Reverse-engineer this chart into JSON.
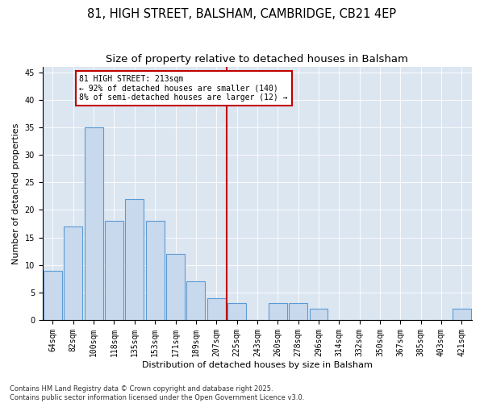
{
  "title1": "81, HIGH STREET, BALSHAM, CAMBRIDGE, CB21 4EP",
  "title2": "Size of property relative to detached houses in Balsham",
  "xlabel": "Distribution of detached houses by size in Balsham",
  "ylabel": "Number of detached properties",
  "categories": [
    "64sqm",
    "82sqm",
    "100sqm",
    "118sqm",
    "135sqm",
    "153sqm",
    "171sqm",
    "189sqm",
    "207sqm",
    "225sqm",
    "243sqm",
    "260sqm",
    "278sqm",
    "296sqm",
    "314sqm",
    "332sqm",
    "350sqm",
    "367sqm",
    "385sqm",
    "403sqm",
    "421sqm"
  ],
  "values": [
    9,
    17,
    35,
    18,
    22,
    18,
    12,
    7,
    4,
    3,
    0,
    3,
    3,
    2,
    0,
    0,
    0,
    0,
    0,
    0,
    2
  ],
  "bar_color": "#c8d9ed",
  "bar_edge_color": "#5b9bd5",
  "vline_index": 8,
  "vline_color": "#c00000",
  "annotation_text": "81 HIGH STREET: 213sqm\n← 92% of detached houses are smaller (140)\n8% of semi-detached houses are larger (12) →",
  "annotation_box_edgecolor": "#c00000",
  "ylim": [
    0,
    46
  ],
  "yticks": [
    0,
    5,
    10,
    15,
    20,
    25,
    30,
    35,
    40,
    45
  ],
  "background_color": "#dce6f1",
  "footer": "Contains HM Land Registry data © Crown copyright and database right 2025.\nContains public sector information licensed under the Open Government Licence v3.0.",
  "title1_fontsize": 10.5,
  "title2_fontsize": 9.5,
  "axis_label_fontsize": 8,
  "tick_fontsize": 7,
  "annotation_fontsize": 7,
  "footer_fontsize": 6
}
